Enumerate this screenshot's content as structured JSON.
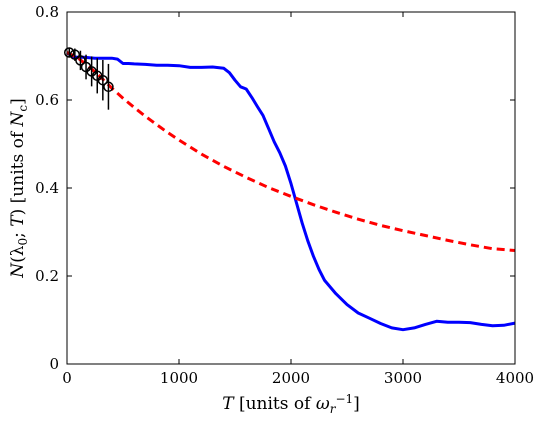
{
  "chart_data": {
    "type": "line",
    "xlabel": "T [units of ω_r^-1]",
    "ylabel": "N(λ0;T) [units of N_c]",
    "xlim": [
      0,
      4000
    ],
    "ylim": [
      0,
      0.8
    ],
    "xticks": [
      0,
      1000,
      2000,
      3000,
      4000
    ],
    "yticks": [
      0,
      0.2,
      0.4,
      0.6,
      0.8
    ],
    "xtick_labels": [
      "0",
      "1000",
      "2000",
      "3000",
      "4000"
    ],
    "ytick_labels": [
      "0",
      "0.2",
      "0.4",
      "0.6",
      "0.8"
    ],
    "grid": false,
    "series": [
      {
        "style": "solid",
        "color": "#0000ff",
        "x": [
          0,
          50,
          100,
          150,
          200,
          250,
          300,
          350,
          400,
          450,
          500,
          550,
          600,
          700,
          800,
          900,
          1000,
          1100,
          1200,
          1300,
          1400,
          1450,
          1500,
          1550,
          1600,
          1650,
          1700,
          1750,
          1800,
          1850,
          1900,
          1950,
          2000,
          2050,
          2100,
          2150,
          2200,
          2250,
          2300,
          2400,
          2500,
          2600,
          2700,
          2800,
          2900,
          3000,
          3100,
          3200,
          3300,
          3400,
          3500,
          3600,
          3700,
          3800,
          3900,
          4000
        ],
        "y": [
          0.708,
          0.698,
          0.697,
          0.697,
          0.696,
          0.695,
          0.695,
          0.695,
          0.695,
          0.693,
          0.683,
          0.683,
          0.682,
          0.681,
          0.679,
          0.679,
          0.678,
          0.674,
          0.674,
          0.675,
          0.672,
          0.662,
          0.645,
          0.63,
          0.625,
          0.606,
          0.585,
          0.565,
          0.535,
          0.505,
          0.48,
          0.45,
          0.41,
          0.365,
          0.32,
          0.28,
          0.245,
          0.215,
          0.19,
          0.16,
          0.135,
          0.116,
          0.104,
          0.092,
          0.082,
          0.078,
          0.082,
          0.09,
          0.097,
          0.095,
          0.095,
          0.094,
          0.09,
          0.087,
          0.088,
          0.093
        ]
      },
      {
        "style": "dashed",
        "color": "#ff0000",
        "x": [
          0,
          100,
          200,
          300,
          400,
          500,
          600,
          700,
          800,
          900,
          1000,
          1200,
          1400,
          1600,
          1800,
          2000,
          2200,
          2400,
          2600,
          2800,
          3000,
          3200,
          3400,
          3600,
          3800,
          4000
        ],
        "y": [
          0.708,
          0.695,
          0.675,
          0.652,
          0.627,
          0.604,
          0.583,
          0.563,
          0.544,
          0.526,
          0.509,
          0.477,
          0.449,
          0.424,
          0.401,
          0.381,
          0.362,
          0.345,
          0.329,
          0.315,
          0.303,
          0.292,
          0.281,
          0.271,
          0.262,
          0.258
        ]
      },
      {
        "style": "markers",
        "color": "#000000",
        "marker": "open-circle",
        "x": [
          20,
          70,
          120,
          170,
          220,
          270,
          320,
          370
        ],
        "y": [
          0.708,
          0.703,
          0.69,
          0.675,
          0.665,
          0.655,
          0.645,
          0.63
        ],
        "yerr": [
          0.01,
          0.014,
          0.022,
          0.028,
          0.034,
          0.04,
          0.046,
          0.052
        ]
      }
    ]
  }
}
